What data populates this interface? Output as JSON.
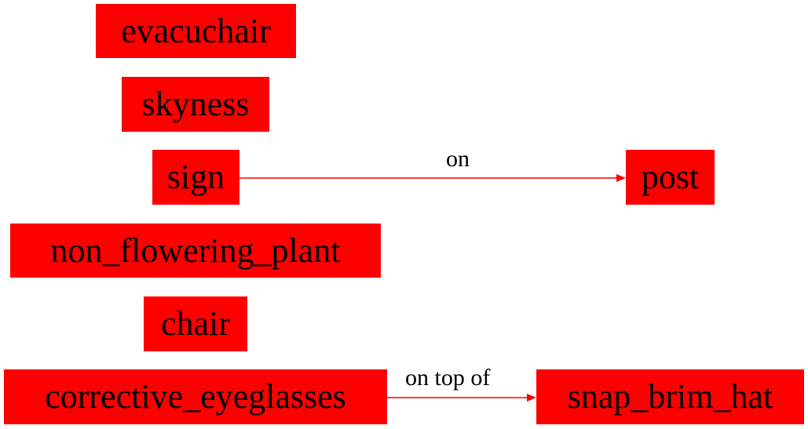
{
  "diagram": {
    "nodes": {
      "evacuchair": "evacuchair",
      "skyness": "skyness",
      "sign": "sign",
      "post": "post",
      "non_flowering_plant": "non_flowering_plant",
      "chair": "chair",
      "corrective_eyeglasses": "corrective_eyeglasses",
      "snap_brim_hat": "snap_brim_hat"
    },
    "edges": [
      {
        "from": "sign",
        "to": "post",
        "label": "on"
      },
      {
        "from": "corrective_eyeglasses",
        "to": "snap_brim_hat",
        "label": "on top of"
      }
    ],
    "colors": {
      "node_fill": "#ff0000",
      "edge": "#ff0000",
      "text": "#000000"
    }
  }
}
